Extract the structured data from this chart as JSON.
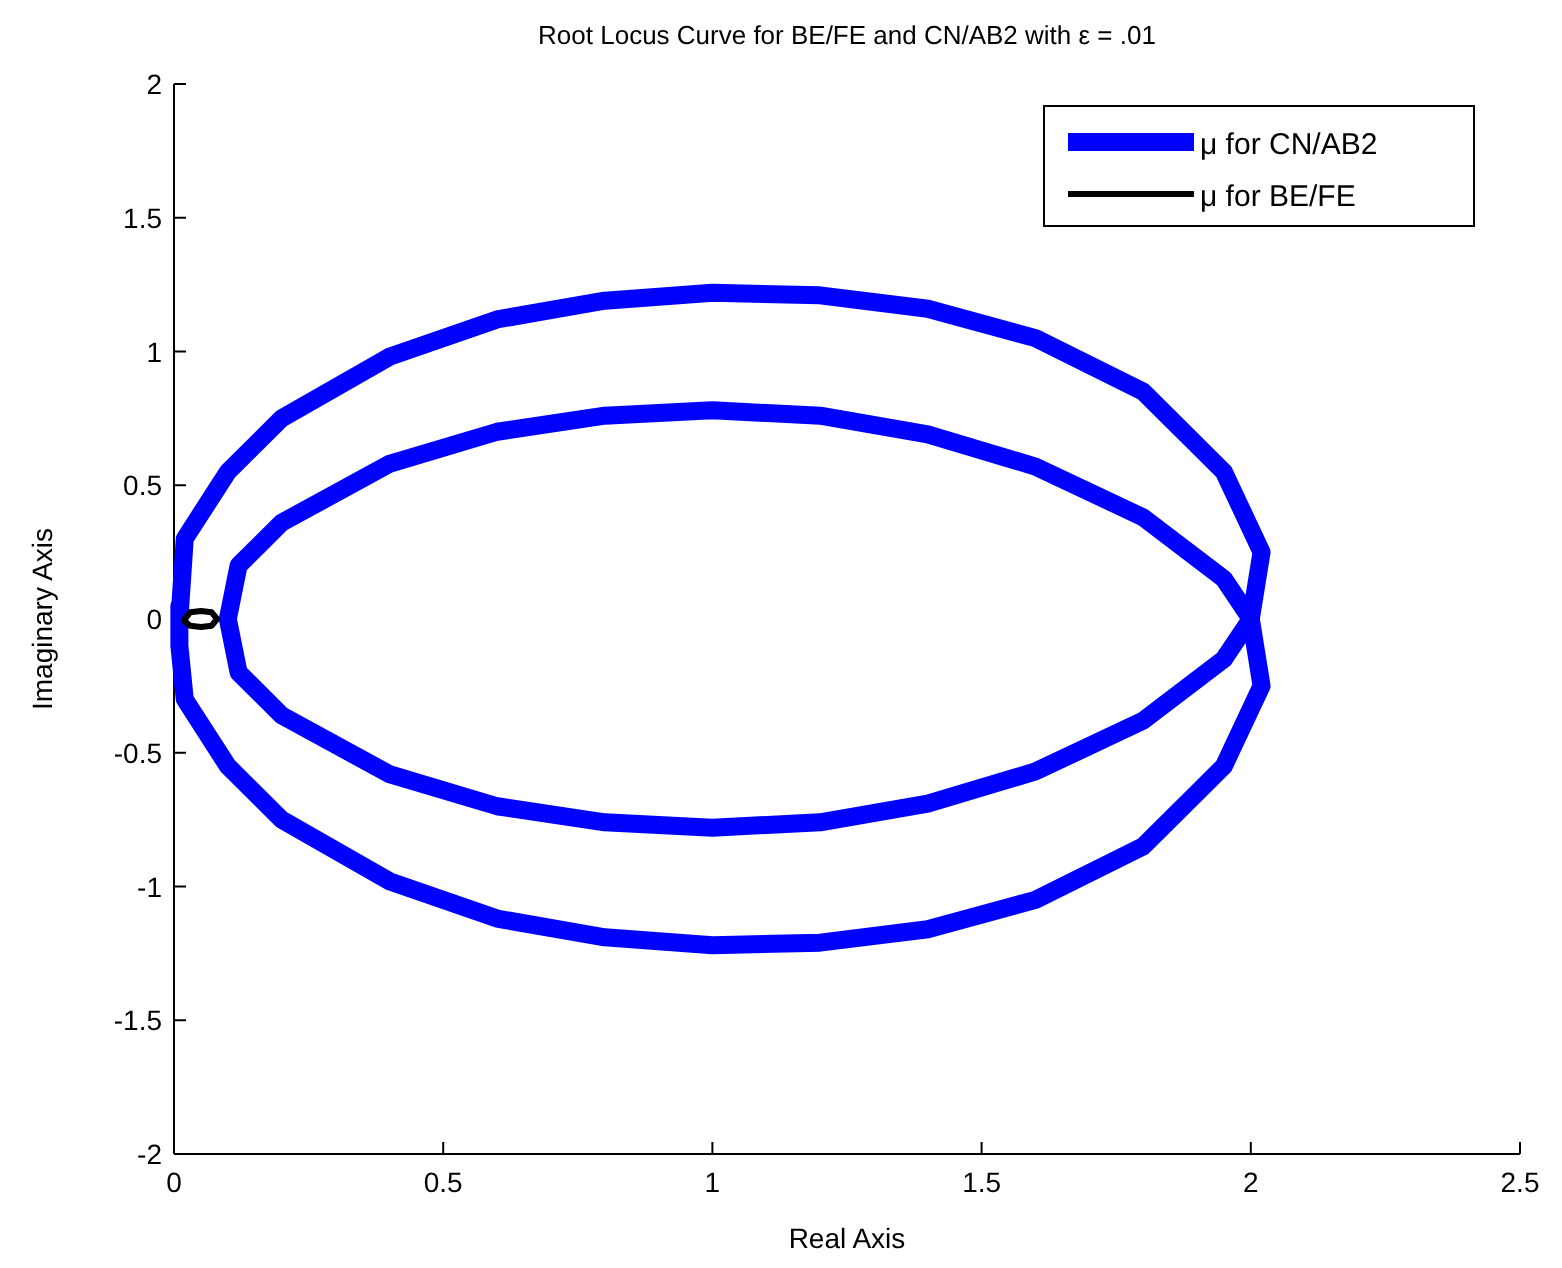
{
  "chart_data": {
    "type": "line",
    "title": "Root Locus Curve for BE/FE and CN/AB2 with ε = .01",
    "xlabel": "Real Axis",
    "ylabel": "Imaginary Axis",
    "xlim": [
      0,
      2.5
    ],
    "ylim": [
      -2,
      2
    ],
    "xticks": [
      0,
      0.5,
      1,
      1.5,
      2,
      2.5
    ],
    "yticks": [
      -2,
      -1.5,
      -1,
      -0.5,
      0,
      0.5,
      1,
      1.5,
      2
    ],
    "grid": false,
    "legend": "top right",
    "marker": "none",
    "line_style": "solid",
    "series": [
      {
        "name": "μ for CN/AB2",
        "color": "#0000ff",
        "x": [
          0.01,
          0.02,
          0.1,
          0.2,
          0.4,
          0.6,
          0.8,
          1.0,
          1.2,
          1.4,
          1.6,
          1.8,
          1.95,
          2.02,
          2.0,
          1.95,
          1.8,
          1.6,
          1.4,
          1.2,
          1.0,
          0.8,
          0.6,
          0.4,
          0.2,
          0.12,
          0.1,
          0.12,
          0.2,
          0.4,
          0.6,
          0.8,
          1.0,
          1.2,
          1.4,
          1.6,
          1.8,
          1.95,
          2.0,
          2.02,
          1.95,
          1.8,
          1.6,
          1.4,
          1.2,
          1.0,
          0.8,
          0.6,
          0.4,
          0.2,
          0.1,
          0.02,
          0.01,
          0.01
        ],
        "values": [
          0,
          0.3,
          0.55,
          0.75,
          0.98,
          1.12,
          1.19,
          1.22,
          1.21,
          1.16,
          1.05,
          0.85,
          0.55,
          0.25,
          0,
          -0.15,
          -0.38,
          -0.57,
          -0.69,
          -0.76,
          -0.78,
          -0.76,
          -0.7,
          -0.58,
          -0.36,
          -0.2,
          0,
          0.2,
          0.36,
          0.58,
          0.7,
          0.76,
          0.78,
          0.76,
          0.69,
          0.57,
          0.38,
          0.15,
          0,
          -0.25,
          -0.55,
          -0.85,
          -1.05,
          -1.16,
          -1.21,
          -1.22,
          -1.19,
          -1.12,
          -0.98,
          -0.75,
          -0.55,
          -0.3,
          -0.1,
          0.05
        ]
      },
      {
        "name": "μ for BE/FE",
        "color": "#000000",
        "x": [
          0.02,
          0.03,
          0.05,
          0.07,
          0.08,
          0.07,
          0.05,
          0.03,
          0.02
        ],
        "values": [
          0,
          0.025,
          0.03,
          0.025,
          0,
          -0.025,
          -0.03,
          -0.025,
          -0.01
        ]
      }
    ]
  }
}
